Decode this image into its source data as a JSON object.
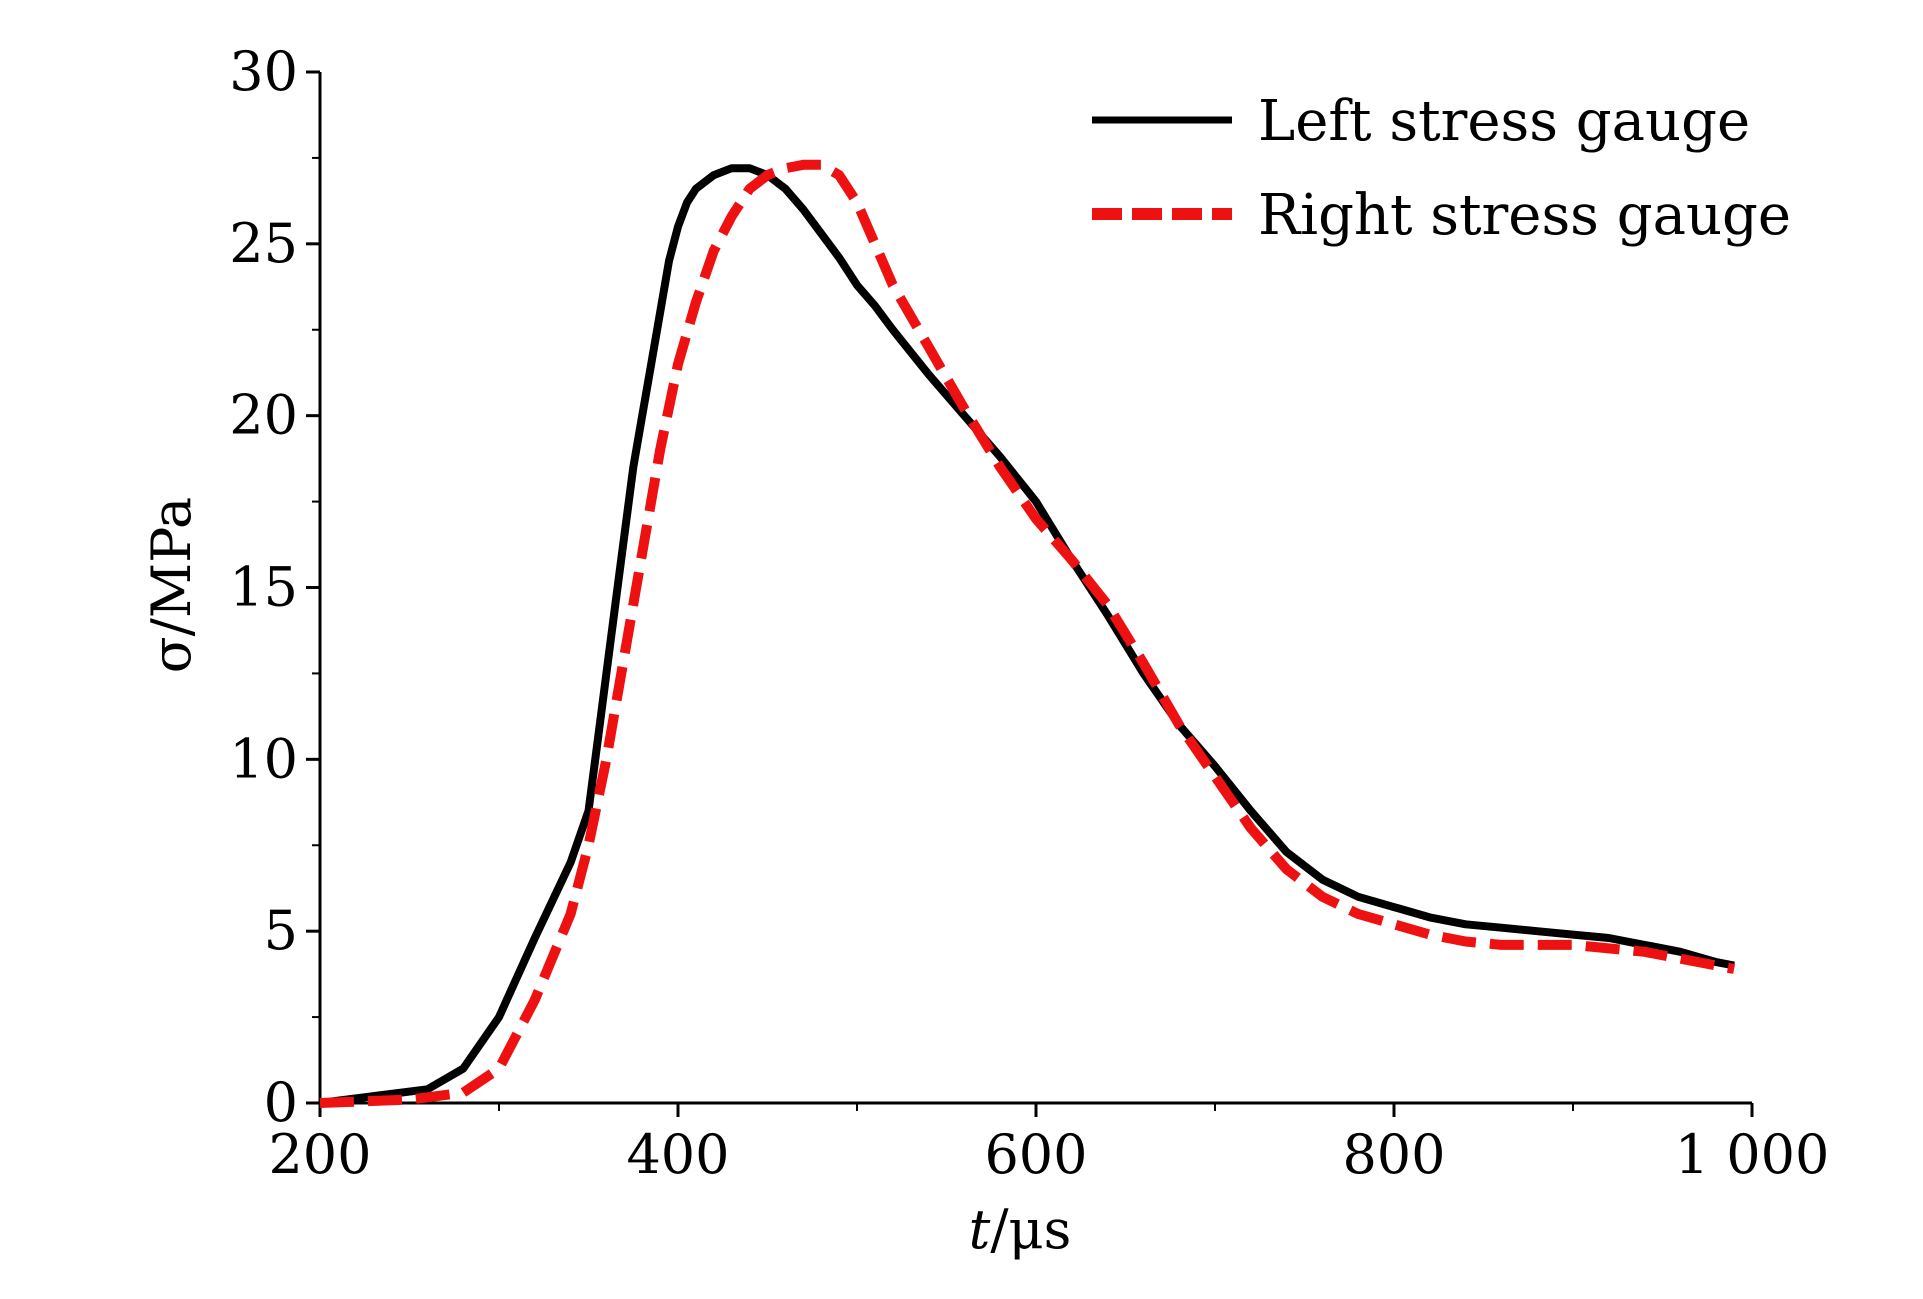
{
  "chart_data": {
    "type": "line",
    "title": "",
    "xlabel": "t/μs",
    "xlabel_italic": "t",
    "xlabel_rest": "/μs",
    "ylabel": "σ/MPa",
    "xlim": [
      200,
      1000
    ],
    "ylim": [
      0,
      30
    ],
    "xticks": [
      200,
      400,
      600,
      800,
      1000
    ],
    "xtick_labels": [
      "200",
      "400",
      "600",
      "800",
      "1 000"
    ],
    "yticks": [
      0,
      5,
      10,
      15,
      20,
      25,
      30
    ],
    "ytick_labels": [
      "0",
      "5",
      "10",
      "15",
      "20",
      "25",
      "30"
    ],
    "grid": false,
    "legend_position": "top-right",
    "series": [
      {
        "name": "Left stress gauge",
        "color": "#000000",
        "style": "solid",
        "x": [
          200,
          230,
          260,
          280,
          300,
          320,
          340,
          350,
          355,
          360,
          365,
          370,
          375,
          380,
          385,
          390,
          395,
          400,
          405,
          410,
          420,
          430,
          440,
          450,
          460,
          470,
          480,
          490,
          500,
          510,
          520,
          540,
          560,
          580,
          600,
          620,
          640,
          660,
          680,
          700,
          720,
          740,
          760,
          780,
          800,
          820,
          840,
          860,
          880,
          900,
          920,
          940,
          960,
          980,
          990
        ],
        "y": [
          0,
          0.2,
          0.4,
          1.0,
          2.5,
          4.8,
          7.0,
          8.5,
          10.5,
          12.5,
          14.5,
          16.5,
          18.5,
          20.0,
          21.5,
          23.0,
          24.5,
          25.5,
          26.2,
          26.6,
          27.0,
          27.2,
          27.2,
          27.0,
          26.6,
          26.0,
          25.3,
          24.6,
          23.8,
          23.2,
          22.5,
          21.2,
          20.0,
          18.8,
          17.5,
          15.8,
          14.2,
          12.5,
          11.0,
          9.8,
          8.5,
          7.3,
          6.5,
          6.0,
          5.7,
          5.4,
          5.2,
          5.1,
          5.0,
          4.9,
          4.8,
          4.6,
          4.4,
          4.1,
          4.0
        ]
      },
      {
        "name": "Right stress gauge",
        "color": "#ee1111",
        "style": "dashed",
        "x": [
          200,
          250,
          280,
          300,
          320,
          340,
          350,
          360,
          370,
          380,
          390,
          400,
          410,
          420,
          430,
          440,
          450,
          460,
          470,
          480,
          490,
          500,
          510,
          520,
          540,
          560,
          580,
          600,
          620,
          640,
          660,
          680,
          700,
          720,
          740,
          760,
          780,
          800,
          820,
          840,
          860,
          880,
          900,
          920,
          940,
          960,
          980,
          990
        ],
        "y": [
          0,
          0.1,
          0.3,
          1.0,
          3.0,
          5.5,
          7.5,
          10.0,
          13.0,
          16.0,
          19.0,
          21.5,
          23.3,
          24.8,
          25.8,
          26.6,
          27.0,
          27.2,
          27.3,
          27.3,
          27.0,
          26.2,
          25.0,
          23.8,
          22.0,
          20.2,
          18.5,
          17.0,
          15.8,
          14.5,
          12.8,
          11.0,
          9.5,
          8.0,
          6.8,
          6.0,
          5.5,
          5.2,
          4.9,
          4.7,
          4.6,
          4.6,
          4.6,
          4.5,
          4.4,
          4.2,
          4.0,
          3.9
        ]
      }
    ]
  }
}
